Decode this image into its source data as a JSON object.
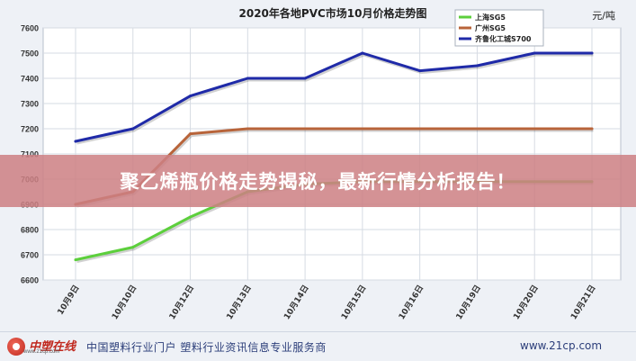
{
  "chart_data": {
    "type": "line",
    "title": "2020年各地PVC市场10月价格走势图",
    "unit_label": "元/吨",
    "xlabel": "",
    "ylabel": "",
    "categories": [
      "10月9日",
      "10月10日",
      "10月12日",
      "10月13日",
      "10月14日",
      "10月15日",
      "10月16日",
      "10月19日",
      "10月20日",
      "10月21日"
    ],
    "ylim": [
      6600,
      7600
    ],
    "yticks": [
      6600,
      6700,
      6800,
      6900,
      7000,
      7100,
      7200,
      7300,
      7400,
      7500,
      7600
    ],
    "grid": true,
    "legend_position": "top-right",
    "series": [
      {
        "name": "上海SG5",
        "color": "#5ccf3c",
        "values": [
          6680,
          6730,
          6850,
          6950,
          6980,
          6990,
          6990,
          6990,
          6990,
          6990
        ]
      },
      {
        "name": "广州SG5",
        "color": "#b8643a",
        "values": [
          6900,
          6950,
          7180,
          7200,
          7200,
          7200,
          7200,
          7200,
          7200,
          7200
        ]
      },
      {
        "name": "齐鲁化工城S700",
        "color": "#1f2aa8",
        "values": [
          7150,
          7200,
          7330,
          7400,
          7400,
          7500,
          7430,
          7450,
          7500,
          7500
        ]
      }
    ]
  },
  "banner": {
    "text": "聚乙烯瓶价格走势揭秘，最新行情分析报告！"
  },
  "footer": {
    "logo_text": "中塑在线",
    "logo_sub": "www.21cp.com",
    "description": "中国塑料行业门户  塑料行业资讯信息专业服务商",
    "url": "www.21cp.com"
  },
  "colors": {
    "background": "#eef1f6",
    "plot_background": "#ffffff",
    "grid": "#d6dbe3",
    "banner": "#cd8084"
  }
}
